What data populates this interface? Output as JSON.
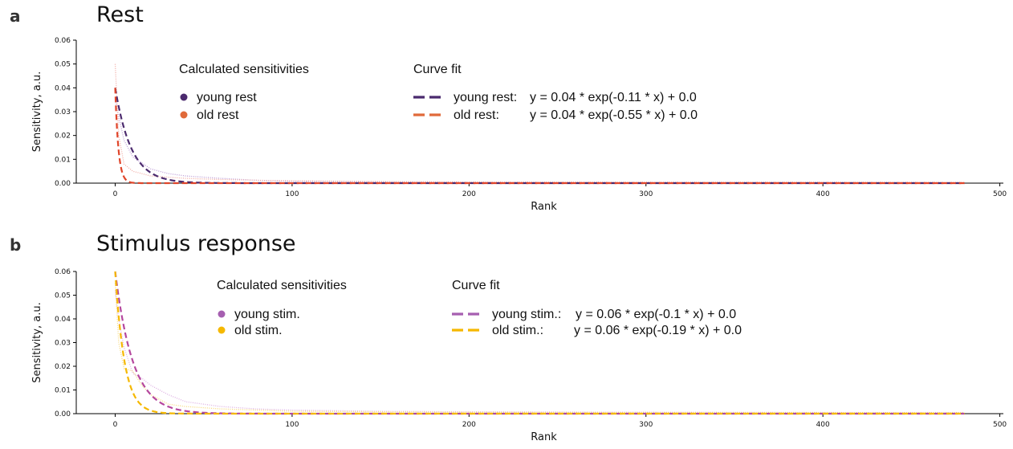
{
  "panels": [
    {
      "letter": "a",
      "title": "Rest",
      "legend": {
        "calc_heading": "Calculated sensitivities",
        "fit_heading": "Curve fit",
        "calc_items": [
          {
            "label": "young rest",
            "color": "#4b2a6e"
          },
          {
            "label": "old rest",
            "color": "#e06a3a"
          }
        ],
        "fit_items": [
          {
            "label": "young rest:",
            "equation": "y = 0.04 * exp(-0.11 * x) + 0.0",
            "color": "#4b2a6e"
          },
          {
            "label": "old rest:",
            "equation": "y = 0.04 * exp(-0.55 * x) + 0.0",
            "color": "#e06a3a"
          }
        ]
      }
    },
    {
      "letter": "b",
      "title": "Stimulus response",
      "legend": {
        "calc_heading": "Calculated sensitivities",
        "fit_heading": "Curve fit",
        "calc_items": [
          {
            "label": "young stim.",
            "color": "#a65fb0"
          },
          {
            "label": "old stim.",
            "color": "#f5b800"
          }
        ],
        "fit_items": [
          {
            "label": "young stim.:",
            "equation": "y = 0.06 * exp(-0.1 * x) + 0.0",
            "color": "#a65fb0"
          },
          {
            "label": "old stim.:",
            "equation": "y = 0.06 * exp(-0.19 * x) + 0.0",
            "color": "#f5b800"
          }
        ]
      }
    }
  ],
  "chart_data": [
    {
      "type": "line",
      "title": "Rest",
      "xlabel": "Rank",
      "ylabel": "Sensitivity, a.u.",
      "xlim": [
        -22,
        502
      ],
      "ylim": [
        0,
        0.06
      ],
      "xticks": [
        0,
        100,
        200,
        300,
        400,
        500
      ],
      "yticks": [
        0.0,
        0.01,
        0.02,
        0.03,
        0.04,
        0.05,
        0.06
      ],
      "legend_placement": "top-center",
      "grid": false,
      "series": [
        {
          "name": "young rest",
          "kind": "points",
          "color": "#b48fd0",
          "x": [
            0,
            2,
            5,
            10,
            15,
            20,
            30,
            40,
            60,
            80,
            100,
            150,
            200,
            300,
            400,
            480
          ],
          "y": [
            0.035,
            0.028,
            0.018,
            0.011,
            0.0085,
            0.006,
            0.004,
            0.003,
            0.002,
            0.0012,
            0.0008,
            0.0005,
            0.0004,
            0.0003,
            0.0003,
            0.0003
          ]
        },
        {
          "name": "old rest",
          "kind": "points",
          "color": "#f0a29a",
          "x": [
            0,
            2,
            5,
            10,
            15,
            20,
            30,
            40,
            60,
            80,
            100,
            150,
            200,
            300,
            400,
            480
          ],
          "y": [
            0.05,
            0.02,
            0.008,
            0.005,
            0.004,
            0.003,
            0.0025,
            0.002,
            0.0015,
            0.0012,
            0.001,
            0.0007,
            0.0005,
            0.0004,
            0.0004,
            0.0003
          ]
        },
        {
          "name": "young rest",
          "kind": "fit",
          "color": "#4b2a6e",
          "a": 0.04,
          "b": 0.11,
          "c": 0.0
        },
        {
          "name": "old rest",
          "kind": "fit",
          "color": "#e0452a",
          "a": 0.04,
          "b": 0.55,
          "c": 0.0
        }
      ]
    },
    {
      "type": "line",
      "title": "Stimulus response",
      "xlabel": "Rank",
      "ylabel": "Sensitivity, a.u.",
      "xlim": [
        -22,
        502
      ],
      "ylim": [
        0,
        0.06
      ],
      "xticks": [
        0,
        100,
        200,
        300,
        400,
        500
      ],
      "yticks": [
        0.0,
        0.01,
        0.02,
        0.03,
        0.04,
        0.05,
        0.06
      ],
      "legend_placement": "top-center",
      "grid": false,
      "series": [
        {
          "name": "young stim.",
          "kind": "points",
          "color": "#d9a6df",
          "x": [
            0,
            2,
            5,
            10,
            15,
            20,
            30,
            40,
            60,
            80,
            100,
            150,
            200,
            300,
            400,
            480
          ],
          "y": [
            0.052,
            0.04,
            0.028,
            0.017,
            0.015,
            0.012,
            0.008,
            0.005,
            0.003,
            0.002,
            0.0015,
            0.001,
            0.0008,
            0.0006,
            0.0005,
            0.0005
          ]
        },
        {
          "name": "old stim.",
          "kind": "points",
          "color": "#f7d56b",
          "x": [
            0,
            2,
            5,
            10,
            15,
            20,
            30,
            40,
            60,
            80,
            100,
            150,
            200,
            300,
            400,
            480
          ],
          "y": [
            0.055,
            0.03,
            0.019,
            0.018,
            0.012,
            0.008,
            0.004,
            0.003,
            0.002,
            0.0015,
            0.001,
            0.0008,
            0.0006,
            0.0005,
            0.0005,
            0.0004
          ]
        },
        {
          "name": "young stim.",
          "kind": "fit",
          "color": "#b5489e",
          "a": 0.06,
          "b": 0.1,
          "c": 0.0
        },
        {
          "name": "old stim.",
          "kind": "fit",
          "color": "#f5b800",
          "a": 0.06,
          "b": 0.19,
          "c": 0.0
        }
      ]
    }
  ]
}
